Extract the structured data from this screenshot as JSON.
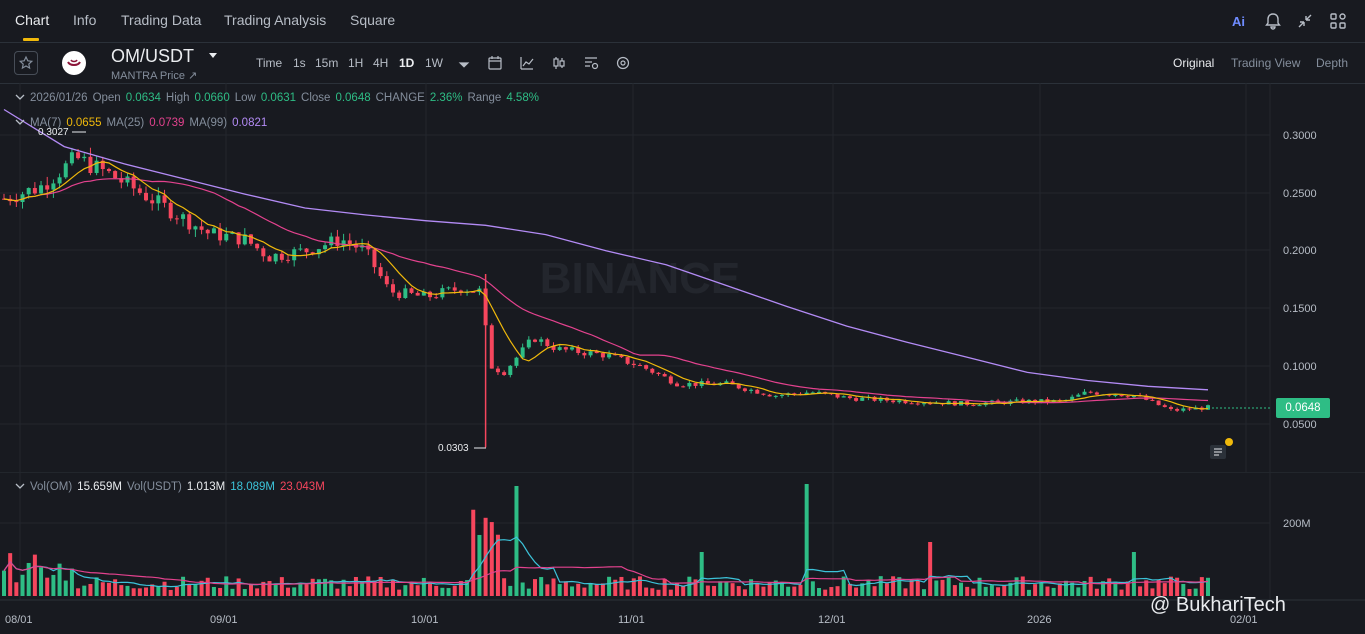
{
  "topnav": {
    "tabs": [
      {
        "label": "Chart"
      },
      {
        "label": "Info"
      },
      {
        "label": "Trading Data"
      },
      {
        "label": "Trading Analysis"
      },
      {
        "label": "Square"
      }
    ],
    "active_tab": "Chart",
    "ai_label": "Ai",
    "icons": [
      "ai-icon",
      "bell-icon",
      "collapse-icon",
      "layout-grid-icon"
    ]
  },
  "toolbar": {
    "pair": "OM/USDT",
    "subtitle": "MANTRA Price ↗",
    "timeframes": [
      "Time",
      "1s",
      "15m",
      "1H",
      "4H",
      "1D",
      "1W"
    ],
    "selected_timeframe": "1D",
    "views": [
      "Original",
      "Trading View",
      "Depth"
    ],
    "selected_view": "Original"
  },
  "ohlc": {
    "date": "2026/01/26",
    "open_label": "Open",
    "open": "0.0634",
    "high_label": "High",
    "high": "0.0660",
    "low_label": "Low",
    "low": "0.0631",
    "close_label": "Close",
    "close": "0.0648",
    "change_label": "CHANGE",
    "change": "2.36%",
    "range_label": "Range",
    "range": "4.58%"
  },
  "ma": {
    "ma7_label": "MA(7)",
    "ma7": "0.0655",
    "ma25_label": "MA(25)",
    "ma25": "0.0739",
    "ma99_label": "MA(99)",
    "ma99": "0.0821"
  },
  "vol": {
    "om_label": "Vol(OM)",
    "om": "15.659M",
    "usdt_label": "Vol(USDT)",
    "usdt": "1.013M",
    "ma1": "18.089M",
    "ma2": "23.043M"
  },
  "chart_data": {
    "type": "candlestick",
    "price_axis": [
      "0.3000",
      "0.2500",
      "0.2000",
      "0.1500",
      "0.1000",
      "0.0500"
    ],
    "volume_axis": [
      "200M"
    ],
    "date_axis": [
      "08/01",
      "09/01",
      "10/01",
      "11/01",
      "12/01",
      "2026",
      "02/01"
    ],
    "ylim": [
      0.02,
      0.33
    ],
    "high_annotation": "0.3027",
    "low_annotation": "0.0303",
    "last_price": "0.0648",
    "watermark_text": "BINANCE",
    "colors": {
      "up": "#2ebd85",
      "down": "#f6465d",
      "ma7": "#f0b90b",
      "ma25": "#e3428e",
      "ma99": "#b38bf5"
    },
    "ma99_path": [
      [
        0,
        0.322
      ],
      [
        0.05,
        0.29
      ],
      [
        0.1,
        0.275
      ],
      [
        0.15,
        0.262
      ],
      [
        0.2,
        0.249
      ],
      [
        0.25,
        0.237
      ],
      [
        0.3,
        0.231
      ],
      [
        0.35,
        0.226
      ],
      [
        0.4,
        0.222
      ],
      [
        0.45,
        0.214
      ],
      [
        0.5,
        0.2
      ],
      [
        0.55,
        0.188
      ],
      [
        0.6,
        0.17
      ],
      [
        0.65,
        0.152
      ],
      [
        0.7,
        0.135
      ],
      [
        0.75,
        0.121
      ],
      [
        0.8,
        0.108
      ],
      [
        0.85,
        0.095
      ],
      [
        0.9,
        0.088
      ],
      [
        0.95,
        0.083
      ],
      [
        1,
        0.08
      ]
    ]
  },
  "watermark": "@ BukhariTech"
}
